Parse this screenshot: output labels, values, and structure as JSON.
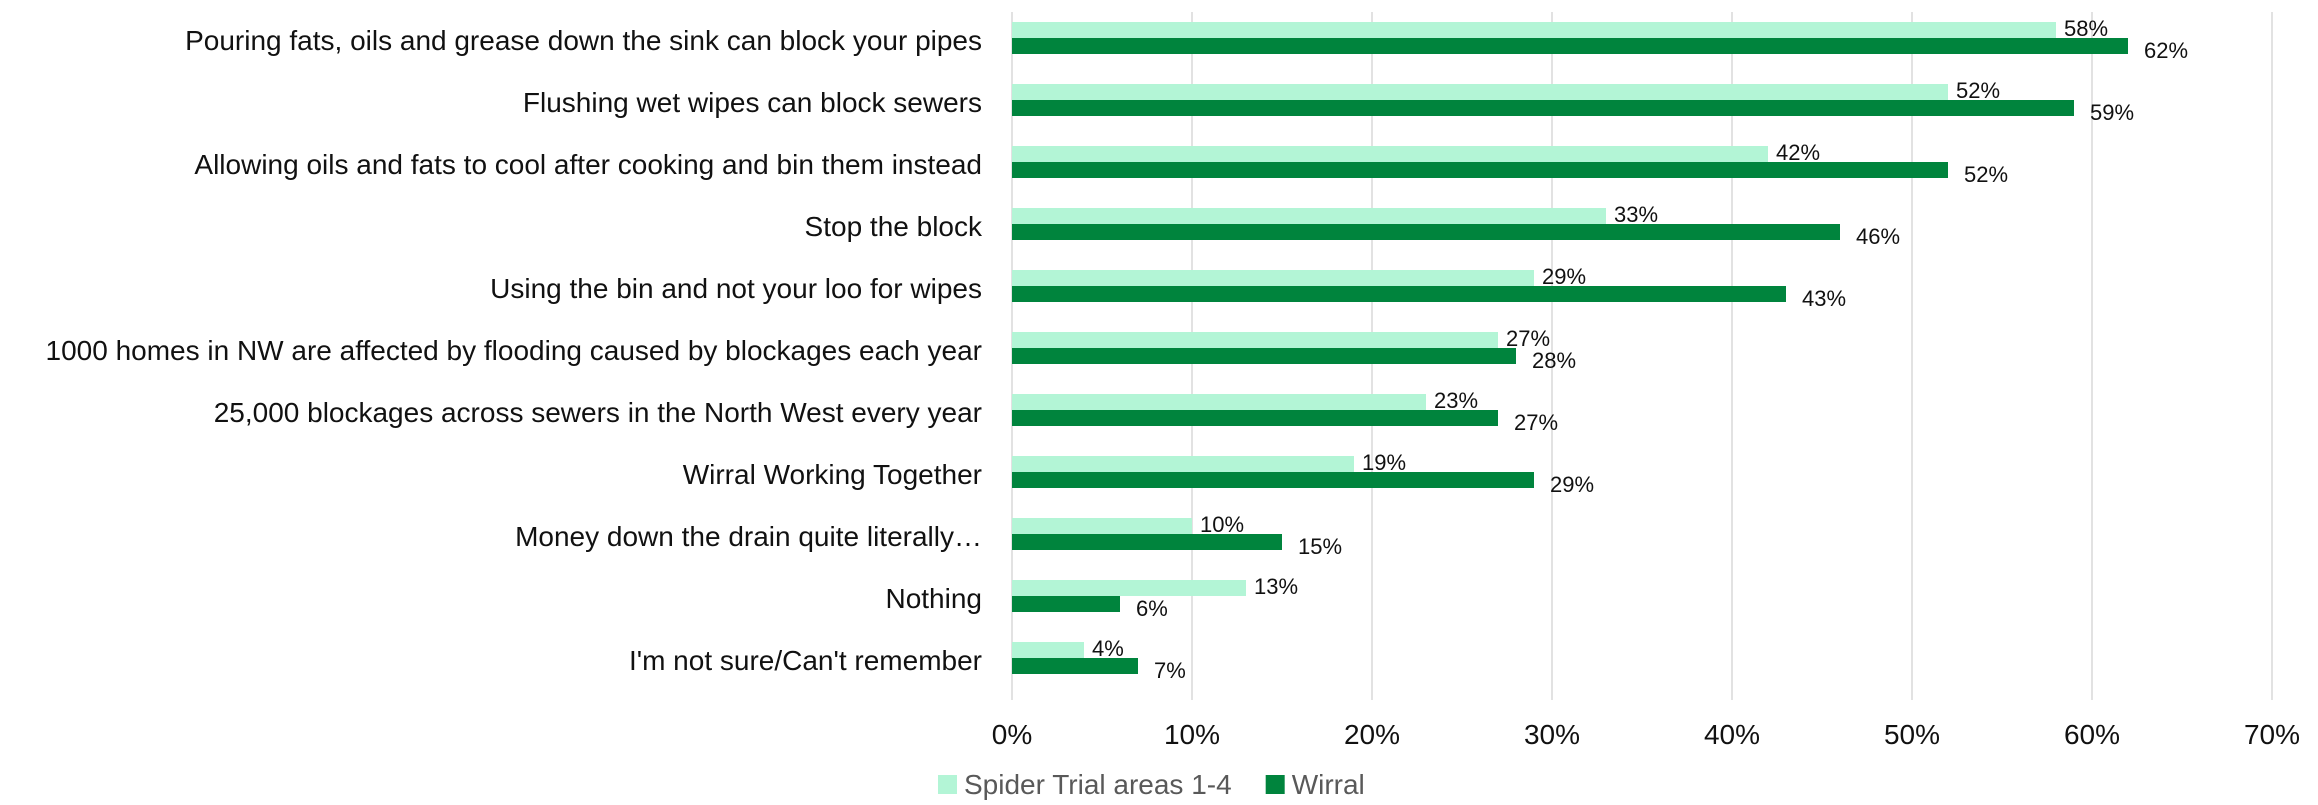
{
  "chart_data": {
    "type": "bar",
    "orientation": "horizontal",
    "title": "",
    "xlabel": "",
    "ylabel": "",
    "xlim": [
      0,
      70
    ],
    "x_ticks": [
      "0%",
      "10%",
      "20%",
      "30%",
      "40%",
      "50%",
      "60%",
      "70%"
    ],
    "grid": true,
    "legend_position": "bottom",
    "categories": [
      "Pouring fats, oils and grease down the sink can block your pipes",
      "Flushing wet wipes can block sewers",
      "Allowing oils and fats to cool after cooking and bin them instead",
      "Stop the block",
      "Using the bin and not your loo for wipes",
      "1000 homes in NW are affected by flooding caused by blockages each year",
      "25,000 blockages across sewers in the North West every year",
      "Wirral Working Together",
      "Money down the drain quite literally…",
      "Nothing",
      "I'm not sure/Can't remember"
    ],
    "series": [
      {
        "name": "Spider Trial areas 1-4",
        "color": "#b3f5d6",
        "values": [
          58,
          52,
          42,
          33,
          29,
          27,
          23,
          19,
          10,
          13,
          4
        ],
        "labels": [
          "58%",
          "52%",
          "42%",
          "33%",
          "29%",
          "27%",
          "23%",
          "19%",
          "10%",
          "13%",
          "4%"
        ]
      },
      {
        "name": "Wirral",
        "color": "#00843d",
        "values": [
          62,
          59,
          52,
          46,
          43,
          28,
          27,
          29,
          15,
          6,
          7
        ],
        "labels": [
          "62%",
          "59%",
          "52%",
          "46%",
          "43%",
          "28%",
          "27%",
          "29%",
          "15%",
          "6%",
          "7%"
        ]
      }
    ]
  },
  "colors": {
    "grid": "#d9d9d9",
    "text": "#111111",
    "legend_text": "#595959"
  }
}
